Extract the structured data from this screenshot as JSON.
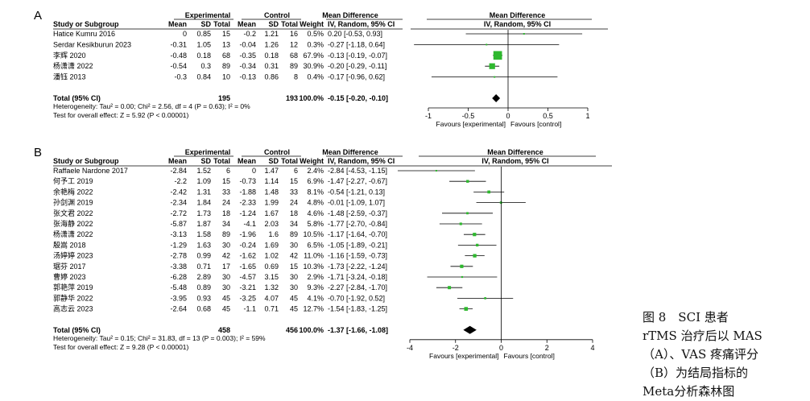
{
  "caption": {
    "lines": [
      "图 8　SCI 患者",
      "rTMS 治疗后以 MAS",
      "（A）、VAS 疼痛评分",
      "（B）为结局指标的",
      "Meta分析森林图"
    ]
  },
  "chart_data": [
    {
      "type": "forest",
      "panel_label": "A",
      "header": {
        "experimental": "Experimental",
        "control": "Control",
        "mean_difference": "Mean Difference",
        "mean_difference_plot": "Mean Difference",
        "study_col": "Study or Subgroup",
        "mean": "Mean",
        "sd": "SD",
        "total": "Total",
        "weight": "Weight",
        "ci_label": "IV, Random, 95% CI",
        "ci_label_plot": "IV, Random, 95% CI"
      },
      "studies": [
        {
          "name": "Hatice Kumru 2016",
          "e_mean": "0",
          "e_sd": "0.85",
          "e_n": "15",
          "c_mean": "-0.2",
          "c_sd": "1.21",
          "c_n": "16",
          "weight": "0.5%",
          "ci_text": "0.20 [-0.53, 0.93]",
          "md": 0.2,
          "lo": -0.53,
          "hi": 0.93,
          "w": 0.5
        },
        {
          "name": "Serdar Kesikburun 2023",
          "e_mean": "-0.31",
          "e_sd": "1.05",
          "e_n": "13",
          "c_mean": "-0.04",
          "c_sd": "1.26",
          "c_n": "12",
          "weight": "0.3%",
          "ci_text": "-0.27 [-1.18, 0.64]",
          "md": -0.27,
          "lo": -1.18,
          "hi": 0.64,
          "w": 0.3
        },
        {
          "name": "李辉 2020",
          "e_mean": "-0.48",
          "e_sd": "0.18",
          "e_n": "68",
          "c_mean": "-0.35",
          "c_sd": "0.18",
          "c_n": "68",
          "weight": "67.9%",
          "ci_text": "-0.13 [-0.19, -0.07]",
          "md": -0.13,
          "lo": -0.19,
          "hi": -0.07,
          "w": 67.9
        },
        {
          "name": "杨潇潇 2022",
          "e_mean": "-0.54",
          "e_sd": "0.3",
          "e_n": "89",
          "c_mean": "-0.34",
          "c_sd": "0.31",
          "c_n": "89",
          "weight": "30.9%",
          "ci_text": "-0.20 [-0.29, -0.11]",
          "md": -0.2,
          "lo": -0.29,
          "hi": -0.11,
          "w": 30.9
        },
        {
          "name": "潘钰 2013",
          "e_mean": "-0.3",
          "e_sd": "0.84",
          "e_n": "10",
          "c_mean": "-0.13",
          "c_sd": "0.86",
          "c_n": "8",
          "weight": "0.4%",
          "ci_text": "-0.17 [-0.96, 0.62]",
          "md": -0.17,
          "lo": -0.96,
          "hi": 0.62,
          "w": 0.4
        }
      ],
      "total": {
        "label": "Total (95% CI)",
        "e_n": "195",
        "c_n": "193",
        "weight": "100.0%",
        "ci_text": "-0.15 [-0.20, -0.10]",
        "md": -0.15,
        "lo": -0.2,
        "hi": -0.1
      },
      "heterogeneity": "Heterogeneity: Tau² = 0.00; Chi² = 2.56, df = 4 (P = 0.63); I² = 0%",
      "overall_effect": "Test for overall effect: Z = 5.92 (P < 0.00001)",
      "axis": {
        "min": -1,
        "max": 1,
        "ticks": [
          -1,
          -0.5,
          0,
          0.5,
          1
        ],
        "tick_labels": [
          "-1",
          "-0.5",
          "0",
          "0.5",
          "1"
        ]
      },
      "favours_left": "Favours [experimental]",
      "favours_right": "Favours [control]",
      "colors": {
        "box": "#2eb82e",
        "diamond": "#000000",
        "line": "#000000"
      }
    },
    {
      "type": "forest",
      "panel_label": "B",
      "header": {
        "experimental": "Experimental",
        "control": "Control",
        "mean_difference": "Mean Difference",
        "mean_difference_plot": "Mean Difference",
        "study_col": "Study or Subgroup",
        "mean": "Mean",
        "sd": "SD",
        "total": "Total",
        "weight": "Weight",
        "ci_label": "IV, Random, 95% CI",
        "ci_label_plot": "IV, Random, 95% CI"
      },
      "studies": [
        {
          "name": "Raffaele Nardone 2017",
          "e_mean": "-2.84",
          "e_sd": "1.52",
          "e_n": "6",
          "c_mean": "0",
          "c_sd": "1.47",
          "c_n": "6",
          "weight": "2.4%",
          "ci_text": "-2.84 [-4.53, -1.15]",
          "md": -2.84,
          "lo": -4.53,
          "hi": -1.15,
          "w": 2.4
        },
        {
          "name": "何予工 2019",
          "e_mean": "-2.2",
          "e_sd": "1.09",
          "e_n": "15",
          "c_mean": "-0.73",
          "c_sd": "1.14",
          "c_n": "15",
          "weight": "6.9%",
          "ci_text": "-1.47 [-2.27, -0.67]",
          "md": -1.47,
          "lo": -2.27,
          "hi": -0.67,
          "w": 6.9
        },
        {
          "name": "余艳梅 2022",
          "e_mean": "-2.42",
          "e_sd": "1.31",
          "e_n": "33",
          "c_mean": "-1.88",
          "c_sd": "1.48",
          "c_n": "33",
          "weight": "8.1%",
          "ci_text": "-0.54 [-1.21, 0.13]",
          "md": -0.54,
          "lo": -1.21,
          "hi": 0.13,
          "w": 8.1
        },
        {
          "name": "孙剑渊 2019",
          "e_mean": "-2.34",
          "e_sd": "1.84",
          "e_n": "24",
          "c_mean": "-2.33",
          "c_sd": "1.99",
          "c_n": "24",
          "weight": "4.8%",
          "ci_text": "-0.01 [-1.09, 1.07]",
          "md": -0.01,
          "lo": -1.09,
          "hi": 1.07,
          "w": 4.8
        },
        {
          "name": "张文君 2022",
          "e_mean": "-2.72",
          "e_sd": "1.73",
          "e_n": "18",
          "c_mean": "-1.24",
          "c_sd": "1.67",
          "c_n": "18",
          "weight": "4.6%",
          "ci_text": "-1.48 [-2.59, -0.37]",
          "md": -1.48,
          "lo": -2.59,
          "hi": -0.37,
          "w": 4.6
        },
        {
          "name": "张海静 2022",
          "e_mean": "-5.87",
          "e_sd": "1.87",
          "e_n": "34",
          "c_mean": "-4.1",
          "c_sd": "2.03",
          "c_n": "34",
          "weight": "5.8%",
          "ci_text": "-1.77 [-2.70, -0.84]",
          "md": -1.77,
          "lo": -2.7,
          "hi": -0.84,
          "w": 5.8
        },
        {
          "name": "杨潇潇 2022",
          "e_mean": "-3.13",
          "e_sd": "1.58",
          "e_n": "89",
          "c_mean": "-1.96",
          "c_sd": "1.6",
          "c_n": "89",
          "weight": "10.5%",
          "ci_text": "-1.17 [-1.64, -0.70]",
          "md": -1.17,
          "lo": -1.64,
          "hi": -0.7,
          "w": 10.5
        },
        {
          "name": "殷嵩 2018",
          "e_mean": "-1.29",
          "e_sd": "1.63",
          "e_n": "30",
          "c_mean": "-0.24",
          "c_sd": "1.69",
          "c_n": "30",
          "weight": "6.5%",
          "ci_text": "-1.05 [-1.89, -0.21]",
          "md": -1.05,
          "lo": -1.89,
          "hi": -0.21,
          "w": 6.5
        },
        {
          "name": "汤婷婷 2023",
          "e_mean": "-2.78",
          "e_sd": "0.99",
          "e_n": "42",
          "c_mean": "-1.62",
          "c_sd": "1.02",
          "c_n": "42",
          "weight": "11.0%",
          "ci_text": "-1.16 [-1.59, -0.73]",
          "md": -1.16,
          "lo": -1.59,
          "hi": -0.73,
          "w": 11.0
        },
        {
          "name": "琚芬 2017",
          "e_mean": "-3.38",
          "e_sd": "0.71",
          "e_n": "17",
          "c_mean": "-1.65",
          "c_sd": "0.69",
          "c_n": "15",
          "weight": "10.3%",
          "ci_text": "-1.73 [-2.22, -1.24]",
          "md": -1.73,
          "lo": -2.22,
          "hi": -1.24,
          "w": 10.3
        },
        {
          "name": "曹婷 2023",
          "e_mean": "-6.28",
          "e_sd": "2.89",
          "e_n": "30",
          "c_mean": "-4.57",
          "c_sd": "3.15",
          "c_n": "30",
          "weight": "2.9%",
          "ci_text": "-1.71 [-3.24, -0.18]",
          "md": -1.71,
          "lo": -3.24,
          "hi": -0.18,
          "w": 2.9
        },
        {
          "name": "郭艳萍 2019",
          "e_mean": "-5.48",
          "e_sd": "0.89",
          "e_n": "30",
          "c_mean": "-3.21",
          "c_sd": "1.32",
          "c_n": "30",
          "weight": "9.3%",
          "ci_text": "-2.27 [-2.84, -1.70]",
          "md": -2.27,
          "lo": -2.84,
          "hi": -1.7,
          "w": 9.3
        },
        {
          "name": "郭静华 2022",
          "e_mean": "-3.95",
          "e_sd": "0.93",
          "e_n": "45",
          "c_mean": "-3.25",
          "c_sd": "4.07",
          "c_n": "45",
          "weight": "4.1%",
          "ci_text": "-0.70 [-1.92, 0.52]",
          "md": -0.7,
          "lo": -1.92,
          "hi": 0.52,
          "w": 4.1
        },
        {
          "name": "高志云 2023",
          "e_mean": "-2.64",
          "e_sd": "0.68",
          "e_n": "45",
          "c_mean": "-1.1",
          "c_sd": "0.71",
          "c_n": "45",
          "weight": "12.7%",
          "ci_text": "-1.54 [-1.83, -1.25]",
          "md": -1.54,
          "lo": -1.83,
          "hi": -1.25,
          "w": 12.7
        }
      ],
      "total": {
        "label": "Total (95% CI)",
        "e_n": "458",
        "c_n": "456",
        "weight": "100.0%",
        "ci_text": "-1.37 [-1.66, -1.08]",
        "md": -1.37,
        "lo": -1.66,
        "hi": -1.08
      },
      "heterogeneity": "Heterogeneity: Tau² = 0.15; Chi² = 31.83, df = 13 (P = 0.003); I² = 59%",
      "overall_effect": "Test for overall effect: Z = 9.28 (P < 0.00001)",
      "axis": {
        "min": -4,
        "max": 4,
        "ticks": [
          -4,
          -2,
          0,
          2,
          4
        ],
        "tick_labels": [
          "-4",
          "-2",
          "0",
          "2",
          "4"
        ]
      },
      "favours_left": "Favours [experimental]",
      "favours_right": "Favours [control]",
      "colors": {
        "box": "#2eb82e",
        "diamond": "#000000",
        "line": "#000000"
      }
    }
  ]
}
